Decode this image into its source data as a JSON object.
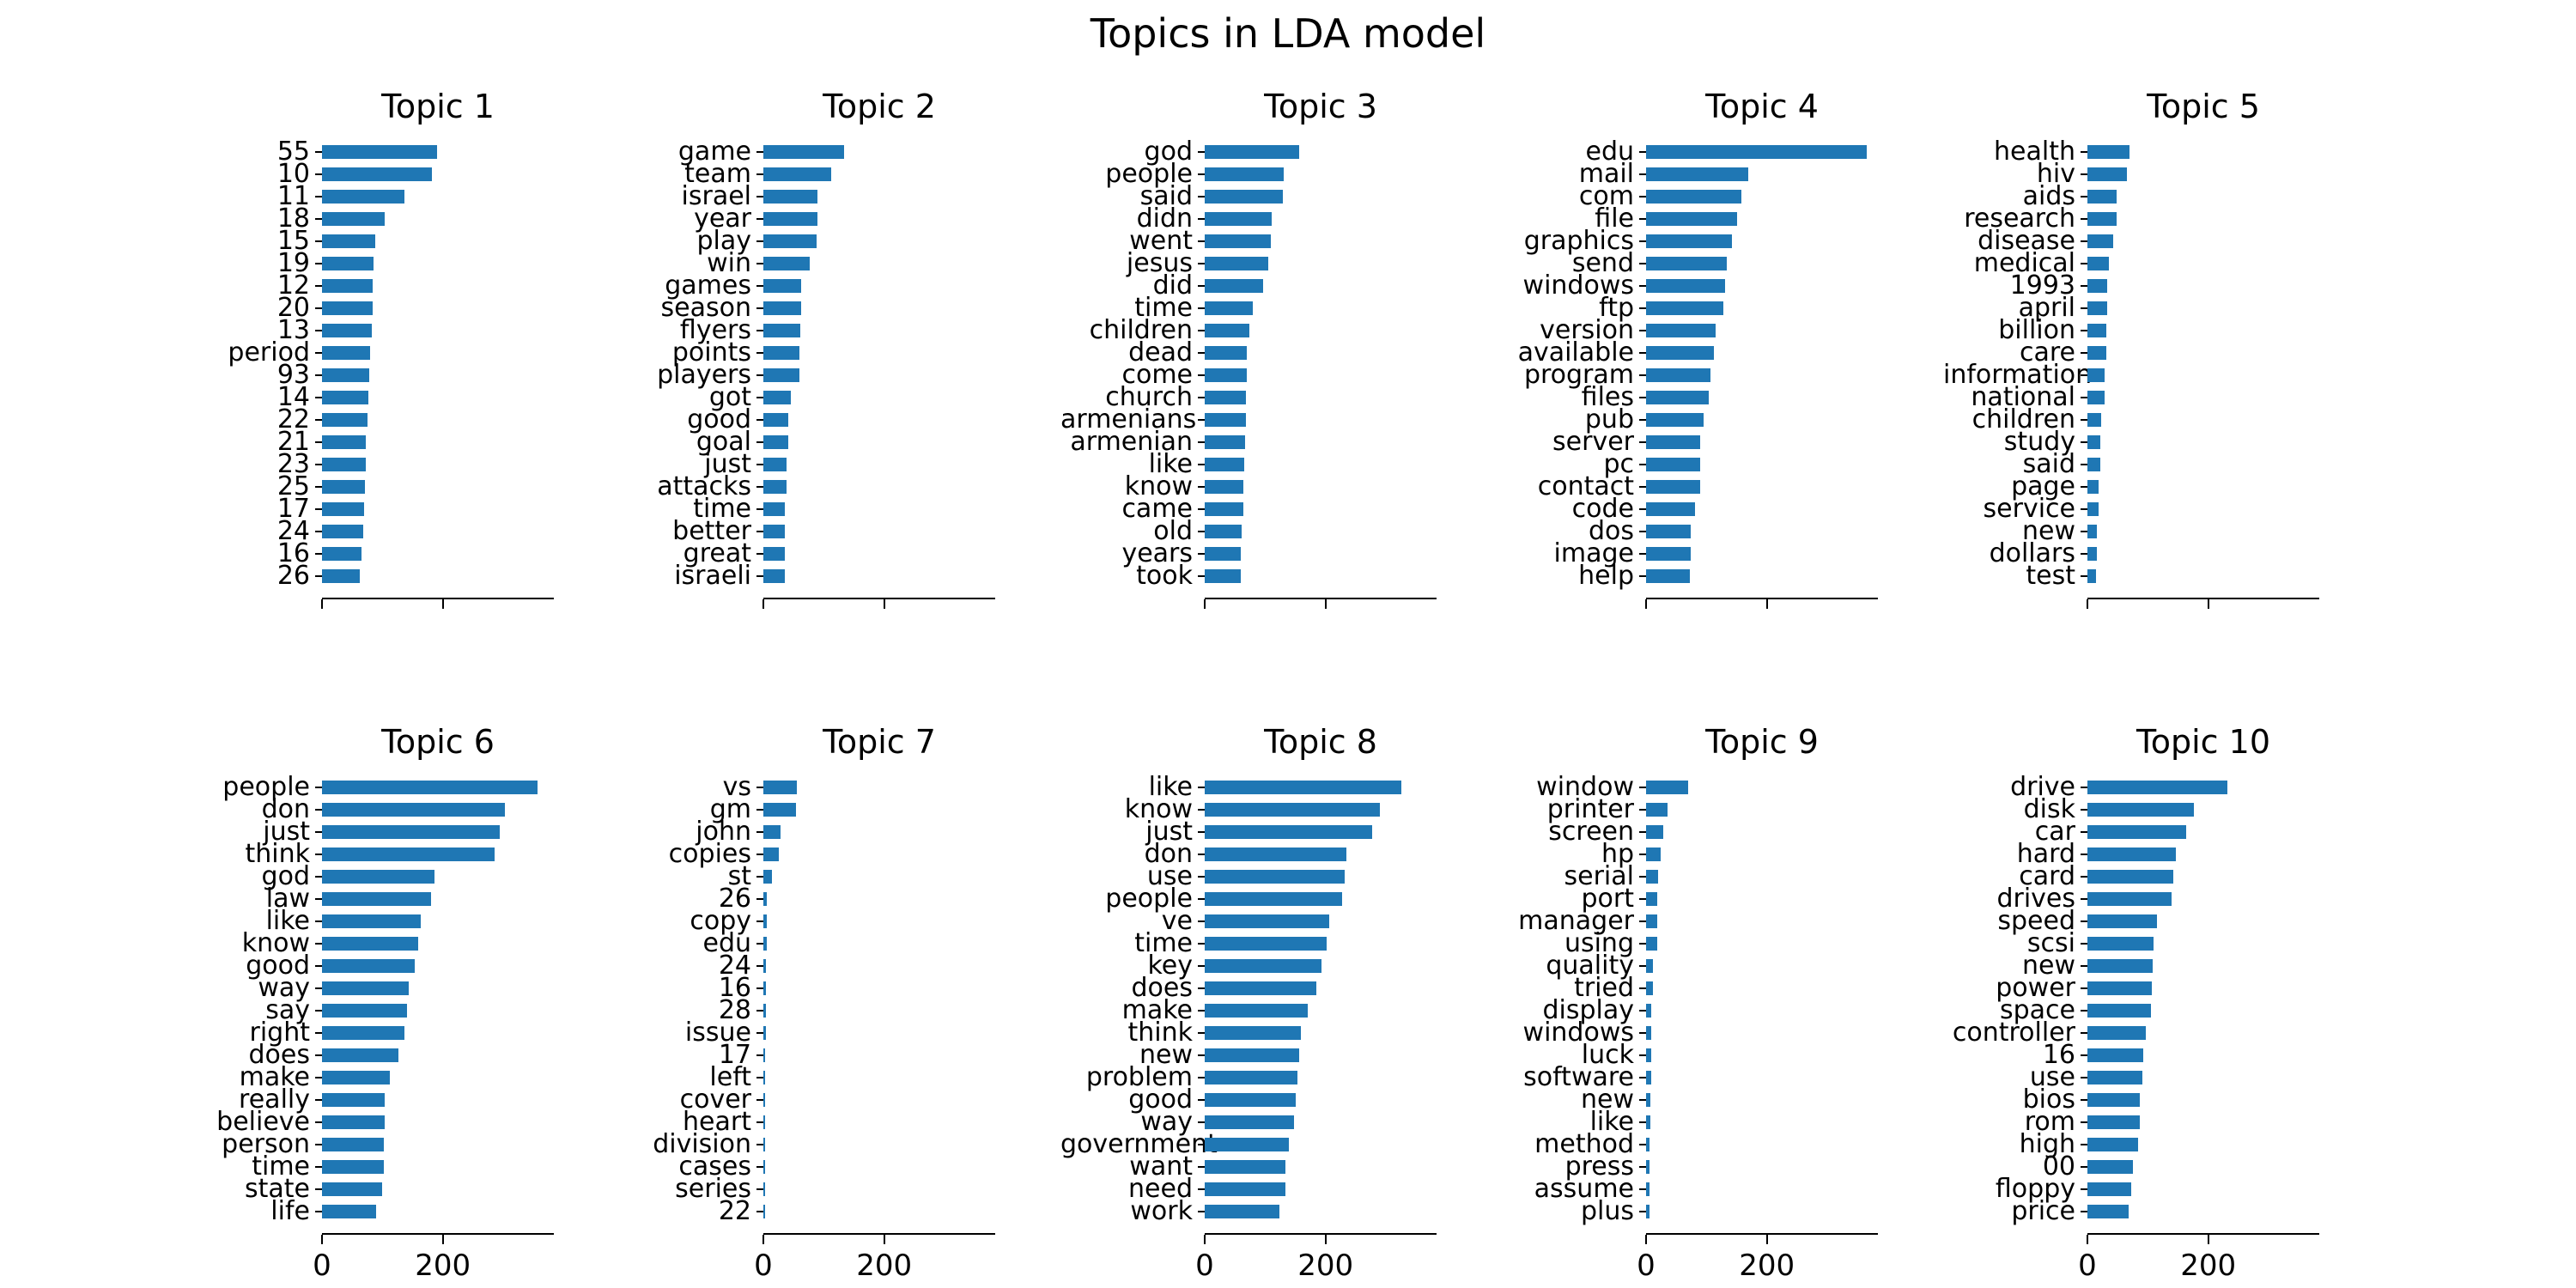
{
  "chart_data": {
    "type": "bar",
    "orientation": "horizontal",
    "suptitle": "Topics in LDA model",
    "bar_color": "#1f77b4",
    "xlim": [
      0,
      385
    ],
    "x_ticks": [
      0,
      200
    ],
    "x_tick_labels": [
      "0",
      "200"
    ],
    "grid": false,
    "legend": "none",
    "subplots": [
      {
        "title": "Topic 1",
        "categories": [
          "55",
          "10",
          "11",
          "18",
          "15",
          "19",
          "12",
          "20",
          "13",
          "period",
          "93",
          "14",
          "22",
          "21",
          "23",
          "25",
          "17",
          "24",
          "16",
          "26"
        ],
        "values": [
          191,
          182,
          137,
          104,
          88,
          85,
          84,
          84,
          82,
          80,
          78,
          77,
          75,
          73,
          73,
          71,
          69,
          68,
          66,
          63
        ]
      },
      {
        "title": "Topic 2",
        "categories": [
          "game",
          "team",
          "israel",
          "year",
          "play",
          "win",
          "games",
          "season",
          "flyers",
          "points",
          "players",
          "got",
          "good",
          "goal",
          "just",
          "attacks",
          "time",
          "better",
          "great",
          "israeli"
        ],
        "values": [
          134,
          112,
          90,
          89,
          88,
          77,
          62,
          62,
          61,
          60,
          59,
          45,
          41,
          41,
          38,
          38,
          36,
          36,
          36,
          36
        ]
      },
      {
        "title": "Topic 3",
        "categories": [
          "god",
          "people",
          "said",
          "didn",
          "went",
          "jesus",
          "did",
          "time",
          "children",
          "dead",
          "come",
          "church",
          "armenians",
          "armenian",
          "like",
          "know",
          "came",
          "old",
          "years",
          "took"
        ],
        "values": [
          157,
          131,
          129,
          111,
          110,
          105,
          96,
          80,
          74,
          70,
          70,
          68,
          68,
          67,
          66,
          64,
          64,
          61,
          60,
          60
        ]
      },
      {
        "title": "Topic 4",
        "categories": [
          "edu",
          "mail",
          "com",
          "file",
          "graphics",
          "send",
          "windows",
          "ftp",
          "version",
          "available",
          "program",
          "files",
          "pub",
          "server",
          "pc",
          "contact",
          "code",
          "dos",
          "image",
          "help"
        ],
        "values": [
          365,
          169,
          158,
          150,
          142,
          134,
          131,
          128,
          115,
          112,
          106,
          104,
          95,
          90,
          90,
          89,
          81,
          74,
          74,
          72
        ]
      },
      {
        "title": "Topic 5",
        "categories": [
          "health",
          "hiv",
          "aids",
          "research",
          "disease",
          "medical",
          "1993",
          "april",
          "billion",
          "care",
          "information",
          "national",
          "children",
          "study",
          "said",
          "page",
          "service",
          "new",
          "dollars",
          "test"
        ],
        "values": [
          69,
          66,
          48,
          48,
          43,
          36,
          33,
          33,
          31,
          31,
          28,
          28,
          23,
          21,
          21,
          18,
          18,
          16,
          16,
          14
        ]
      },
      {
        "title": "Topic 6",
        "categories": [
          "people",
          "don",
          "just",
          "think",
          "god",
          "law",
          "like",
          "know",
          "good",
          "way",
          "say",
          "right",
          "does",
          "make",
          "really",
          "believe",
          "person",
          "time",
          "state",
          "life"
        ],
        "values": [
          357,
          303,
          294,
          286,
          186,
          180,
          163,
          159,
          154,
          143,
          141,
          136,
          126,
          113,
          104,
          104,
          103,
          103,
          99,
          89
        ]
      },
      {
        "title": "Topic 7",
        "categories": [
          "vs",
          "gm",
          "john",
          "copies",
          "st",
          "26",
          "copy",
          "edu",
          "24",
          "16",
          "28",
          "issue",
          "17",
          "left",
          "cover",
          "heart",
          "division",
          "cases",
          "series",
          "22"
        ],
        "values": [
          56,
          54,
          28,
          25,
          14,
          6,
          5,
          5,
          4,
          4,
          4,
          4,
          3,
          3,
          3,
          3,
          3,
          3,
          3,
          2
        ]
      },
      {
        "title": "Topic 8",
        "categories": [
          "like",
          "know",
          "just",
          "don",
          "use",
          "people",
          "ve",
          "time",
          "key",
          "does",
          "make",
          "think",
          "new",
          "problem",
          "good",
          "way",
          "government",
          "want",
          "need",
          "work"
        ],
        "values": [
          325,
          290,
          277,
          235,
          232,
          227,
          206,
          202,
          193,
          185,
          171,
          159,
          157,
          154,
          151,
          148,
          140,
          133,
          133,
          124
        ]
      },
      {
        "title": "Topic 9",
        "categories": [
          "window",
          "printer",
          "screen",
          "hp",
          "serial",
          "port",
          "manager",
          "using",
          "quality",
          "tried",
          "display",
          "windows",
          "luck",
          "software",
          "new",
          "like",
          "method",
          "press",
          "assume",
          "plus"
        ],
        "values": [
          69,
          35,
          29,
          24,
          20,
          19,
          18,
          18,
          11,
          11,
          9,
          9,
          8,
          8,
          7,
          7,
          6,
          6,
          5,
          5
        ]
      },
      {
        "title": "Topic 10",
        "categories": [
          "drive",
          "disk",
          "car",
          "hard",
          "card",
          "drives",
          "speed",
          "scsi",
          "new",
          "power",
          "space",
          "controller",
          "16",
          "use",
          "bios",
          "rom",
          "high",
          "00",
          "floppy",
          "price"
        ],
        "values": [
          231,
          176,
          163,
          147,
          142,
          140,
          115,
          110,
          108,
          107,
          105,
          96,
          92,
          91,
          86,
          86,
          84,
          75,
          72,
          68
        ]
      }
    ]
  }
}
